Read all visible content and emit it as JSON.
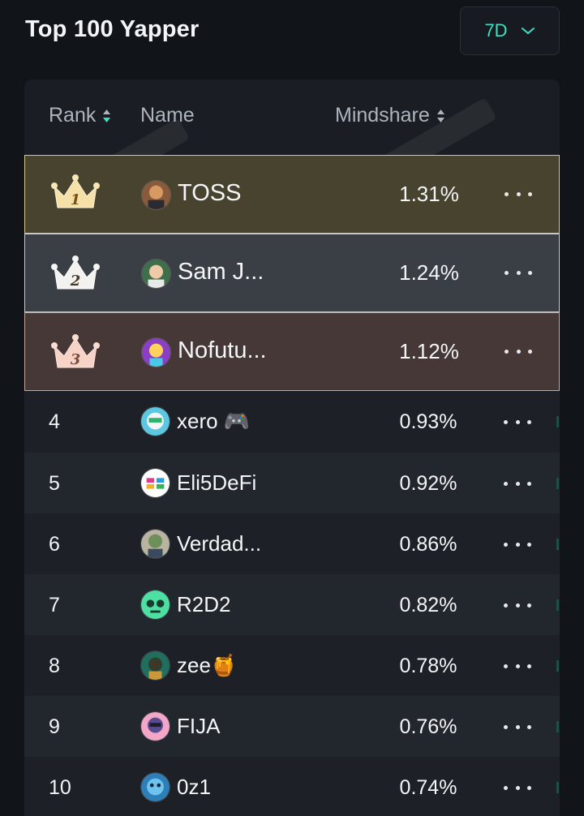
{
  "header": {
    "title": "Top 100 Yapper"
  },
  "period_select": {
    "value": "7D"
  },
  "columns": {
    "rank": "Rank",
    "name": "Name",
    "mindshare": "Mindshare"
  },
  "rows": [
    {
      "rank": "1",
      "name": "TOSS",
      "mindshare": "1.31%"
    },
    {
      "rank": "2",
      "name": "Sam J...",
      "mindshare": "1.24%"
    },
    {
      "rank": "3",
      "name": "Nofutu...",
      "mindshare": "1.12%"
    },
    {
      "rank": "4",
      "name": "xero 🎮",
      "mindshare": "0.93%"
    },
    {
      "rank": "5",
      "name": "Eli5DeFi",
      "mindshare": "0.92%"
    },
    {
      "rank": "6",
      "name": "Verdad...",
      "mindshare": "0.86%"
    },
    {
      "rank": "7",
      "name": "R2D2",
      "mindshare": "0.82%"
    },
    {
      "rank": "8",
      "name": "zee🍯",
      "mindshare": "0.78%"
    },
    {
      "rank": "9",
      "name": "FIJA",
      "mindshare": "0.76%"
    },
    {
      "rank": "10",
      "name": "0z1",
      "mindshare": "0.74%"
    }
  ],
  "colors": {
    "accent": "#3ee0c4",
    "gold": "#d6c889",
    "silver": "#c9cbd0",
    "bronze": "#c6a59b"
  }
}
